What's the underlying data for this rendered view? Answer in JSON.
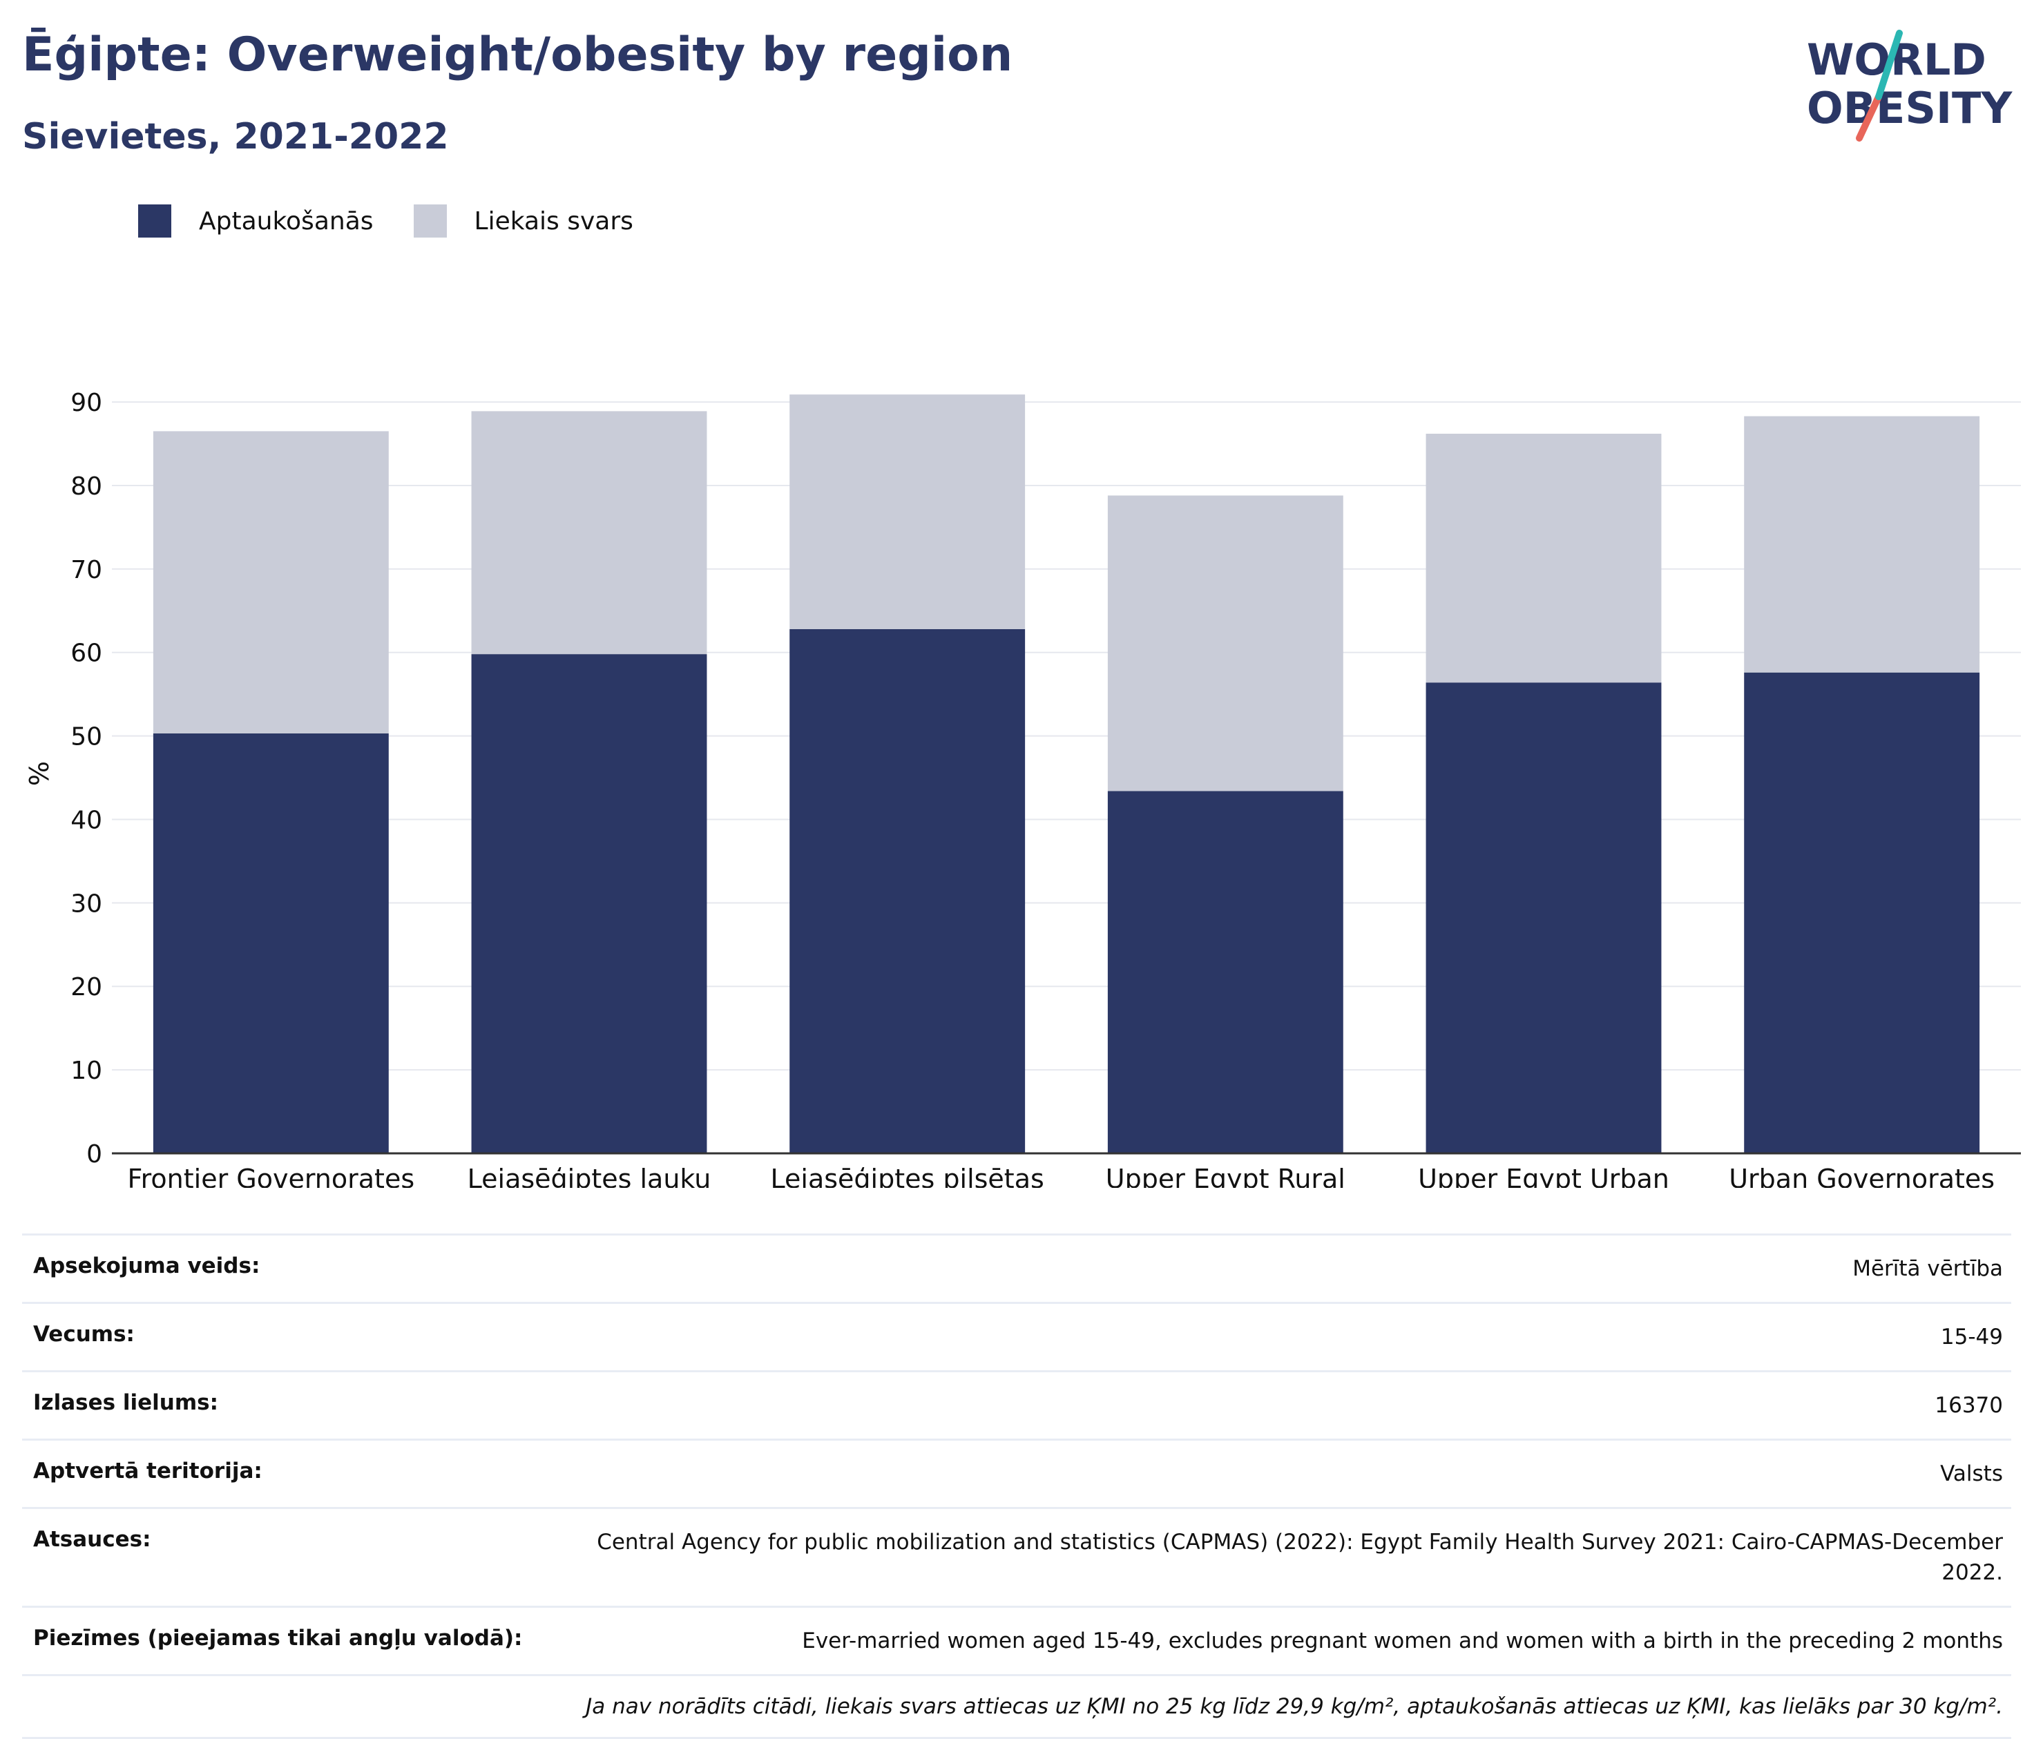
{
  "header": {
    "title": "Ēģipte: Overweight/obesity by region",
    "subtitle": "Sievietes, 2021-2022"
  },
  "logo": {
    "line1": "WORLD",
    "line2": "OBESITY",
    "accent_colors": [
      "#2bb7b3",
      "#e8665a"
    ]
  },
  "legend": [
    {
      "label": "Aptaukošanās",
      "color": "#2b3765"
    },
    {
      "label": "Liekais svars",
      "color": "#c9ccd8"
    }
  ],
  "chart_data": {
    "type": "bar",
    "stacked": true,
    "categories": [
      "Frontier Governorates",
      "Lejasēģiptes lauku",
      "Lejasēģiptes pilsētas",
      "Upper Egypt Rural",
      "Upper Egypt Urban",
      "Urban Governorates"
    ],
    "series": [
      {
        "name": "Aptaukošanās",
        "color": "#2b3765",
        "values": [
          50.3,
          59.8,
          62.8,
          43.4,
          56.4,
          57.6
        ]
      },
      {
        "name": "Liekais svars",
        "color": "#c9ccd8",
        "values": [
          36.2,
          29.1,
          28.1,
          35.4,
          29.8,
          30.7
        ]
      }
    ],
    "ylabel": "%",
    "ylim": [
      0,
      90
    ],
    "yticks": [
      0,
      10,
      20,
      30,
      40,
      50,
      60,
      70,
      80,
      90
    ],
    "grid": true,
    "legend_position": "top-left"
  },
  "info": [
    {
      "key": "Apsekojuma veids:",
      "value": "Mērītā vērtība"
    },
    {
      "key": "Vecums:",
      "value": "15-49"
    },
    {
      "key": "Izlases lielums:",
      "value": "16370"
    },
    {
      "key": "Aptvertā teritorija:",
      "value": "Valsts"
    },
    {
      "key": "Atsauces:",
      "value": "Central Agency for public mobilization and statistics (CAPMAS) (2022): Egypt Family Health Survey 2021: Cairo-CAPMAS-December 2022."
    },
    {
      "key": "Piezīmes (pieejamas tikai angļu valodā):",
      "value": "Ever-married women aged 15-49, excludes pregnant women and women with a birth in the preceding 2 months"
    }
  ],
  "footnote": "Ja nav norādīts citādi, liekais svars attiecas uz ĶMI no 25 kg līdz 29,9 kg/m², aptaukošanās attiecas uz ĶMI, kas lielāks par 30 kg/m²."
}
